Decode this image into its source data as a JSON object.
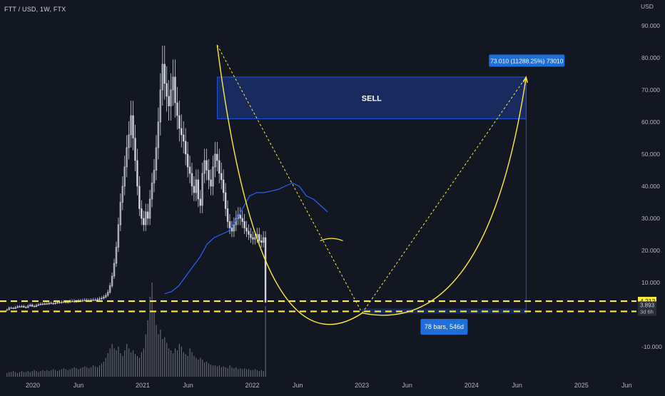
{
  "symbol": {
    "title": "FTT / USD, 1W, FTX"
  },
  "chart_data": {
    "type": "candlestick",
    "currency_label": "USD",
    "x_ticks": [
      "2020",
      "Jun",
      "2021",
      "Jun",
      "2022",
      "Jun",
      "2023",
      "Jun",
      "2024",
      "Jun",
      "2025",
      "Jun"
    ],
    "y_ticks": [
      "90.000",
      "80.000",
      "70.000",
      "60.000",
      "50.000",
      "40.000",
      "30.000",
      "20.000",
      "10.000",
      "-10.000"
    ],
    "ylim": [
      -15,
      95
    ],
    "price_series": {
      "name": "FTT/USD weekly",
      "start": "2019-10-07",
      "interval_days": 7,
      "close": [
        1.5,
        2.1,
        2.0,
        1.9,
        2.2,
        2.5,
        2.4,
        2.6,
        2.3,
        2.2,
        2.7,
        3.0,
        2.6,
        2.5,
        2.9,
        3.1,
        3.3,
        3.2,
        3.4,
        3.3,
        3.6,
        3.5,
        3.4,
        3.6,
        3.8,
        3.7,
        3.9,
        4.0,
        3.8,
        3.9,
        4.1,
        4.2,
        4.0,
        4.1,
        4.3,
        4.2,
        4.4,
        4.5,
        4.3,
        4.4,
        4.5,
        4.6,
        4.5,
        4.7,
        4.9,
        5.1,
        5.5,
        6.0,
        7.0,
        9.0,
        12.0,
        16.0,
        21.0,
        28.0,
        35.0,
        40.0,
        46.0,
        52.0,
        56.0,
        62.0,
        55.0,
        48.0,
        40.0,
        33.0,
        30.0,
        28.0,
        32.0,
        30.0,
        36.0,
        41.0,
        45.0,
        52.0,
        60.0,
        70.0,
        78.0,
        72.0,
        68.0,
        65.0,
        70.0,
        74.0,
        66.0,
        62.0,
        58.0,
        56.0,
        54.0,
        50.0,
        46.0,
        44.0,
        40.0,
        38.0,
        42.0,
        36.0,
        34.0,
        44.0,
        48.0,
        45.0,
        42.0,
        40.0,
        46.0,
        50.0,
        48.0,
        44.0,
        42.0,
        38.0,
        33.0,
        29.0,
        27.0,
        26.0,
        28.0,
        30.0,
        31.0,
        30.0,
        29.0,
        27.0,
        26.0,
        25.0,
        24.0,
        23.5,
        24.0,
        25.0,
        23.0,
        22.5,
        24.0,
        3.9
      ],
      "last_price": "3.893",
      "countdown": "3d 6h"
    },
    "ma_line": {
      "name": "Moving average",
      "color": "#2962ff",
      "values": [
        6.5,
        7.2,
        9.0,
        12.0,
        15.0,
        18.0,
        22.0,
        24.0,
        25.0,
        26.0,
        29.0,
        33.0,
        37.0,
        38.0,
        38.0,
        38.5,
        39.0,
        40.0,
        41.0,
        40.0,
        37.0,
        36.0,
        34.0,
        32.0
      ]
    },
    "horizontal_levels": [
      {
        "value": 4.212,
        "label": "4.212",
        "color": "#ffeb3b",
        "style": "dashed"
      },
      {
        "value": 1.01,
        "label": "1.010",
        "color": "#ffeb3b",
        "style": "dashed"
      }
    ],
    "annotations": {
      "sell_zone": {
        "label": "SELL",
        "price_top": 74,
        "price_bottom": 61,
        "date_start": "2021-09-06",
        "date_end": "2024-07-01"
      },
      "target_label": "73.010 (11288.25%) 73010",
      "range_label": "78 bars, 546d",
      "curve": {
        "top": {
          "date": "2021-09-06",
          "value": 84
        },
        "bottom": {
          "date": "2023-01-02",
          "value": 0.5
        },
        "end": {
          "date": "2024-07-01",
          "value": 74
        }
      },
      "support_arc_label": ""
    },
    "volume": [
      0.04,
      0.05,
      0.05,
      0.06,
      0.05,
      0.04,
      0.05,
      0.06,
      0.05,
      0.05,
      0.06,
      0.05,
      0.06,
      0.07,
      0.06,
      0.05,
      0.06,
      0.07,
      0.06,
      0.07,
      0.06,
      0.07,
      0.08,
      0.07,
      0.06,
      0.07,
      0.08,
      0.09,
      0.08,
      0.07,
      0.08,
      0.09,
      0.1,
      0.09,
      0.08,
      0.09,
      0.1,
      0.11,
      0.1,
      0.09,
      0.1,
      0.12,
      0.11,
      0.1,
      0.12,
      0.14,
      0.16,
      0.2,
      0.25,
      0.3,
      0.35,
      0.3,
      0.28,
      0.32,
      0.25,
      0.22,
      0.28,
      0.35,
      0.3,
      0.26,
      0.28,
      0.24,
      0.22,
      0.2,
      0.26,
      0.3,
      0.45,
      0.6,
      0.85,
      1.0,
      0.7,
      0.55,
      0.45,
      0.5,
      0.4,
      0.42,
      0.36,
      0.3,
      0.28,
      0.25,
      0.3,
      0.28,
      0.35,
      0.32,
      0.26,
      0.24,
      0.22,
      0.3,
      0.26,
      0.22,
      0.2,
      0.18,
      0.2,
      0.18,
      0.15,
      0.16,
      0.14,
      0.13,
      0.12,
      0.12,
      0.11,
      0.12,
      0.1,
      0.11,
      0.1,
      0.09,
      0.12,
      0.1,
      0.09,
      0.1,
      0.08,
      0.09,
      0.08,
      0.09,
      0.08,
      0.08,
      0.07,
      0.07,
      0.08,
      0.07,
      0.06,
      0.07,
      0.06,
      0.75
    ]
  },
  "colors": {
    "background": "#131722",
    "candle": "#d1d4dc",
    "accent_yellow": "#ffeb3b",
    "accent_blue": "#2962ff",
    "label_blue": "#1e6fd9",
    "volume": "#6b6f7a"
  }
}
